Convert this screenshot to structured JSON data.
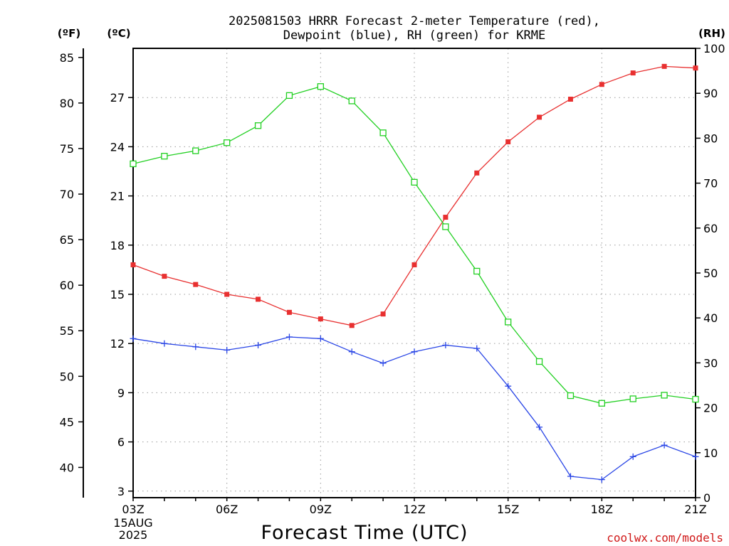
{
  "title_line1": "2025081503 HRRR Forecast 2-meter Temperature (red),",
  "title_line2": "Dewpoint (blue), RH (green) for KRME",
  "credit": "coolwx.com/models",
  "colors": {
    "temperature": "#e83030",
    "dewpoint": "#2a46e6",
    "rh": "#22d022"
  },
  "chart_data": {
    "type": "line",
    "xlabel": "Forecast Time (UTC)",
    "x": [
      "03Z",
      "04Z",
      "05Z",
      "06Z",
      "07Z",
      "08Z",
      "09Z",
      "10Z",
      "11Z",
      "12Z",
      "13Z",
      "14Z",
      "15Z",
      "16Z",
      "17Z",
      "18Z",
      "19Z",
      "20Z",
      "21Z"
    ],
    "x_ticks": [
      {
        "label": "03Z",
        "sub": [
          "15AUG",
          "2025"
        ]
      },
      {
        "label": "06Z"
      },
      {
        "label": "09Z"
      },
      {
        "label": "12Z"
      },
      {
        "label": "15Z"
      },
      {
        "label": "18Z"
      },
      {
        "label": "21Z"
      }
    ],
    "left_axis_c": {
      "unit": "(ºC)",
      "ylim": [
        2.6,
        30.0
      ],
      "ticks": [
        3,
        6,
        9,
        12,
        15,
        18,
        21,
        24,
        27
      ]
    },
    "left_axis_f": {
      "unit": "(ºF)",
      "ticks": [
        40,
        45,
        50,
        55,
        60,
        65,
        70,
        75,
        80,
        85
      ]
    },
    "right_axis_rh": {
      "unit": "(RH)",
      "ylim": [
        0,
        100
      ],
      "ticks": [
        0,
        10,
        20,
        30,
        40,
        50,
        60,
        70,
        80,
        90,
        100
      ]
    },
    "grid": true,
    "series": [
      {
        "name": "Temperature",
        "axis": "c",
        "marker": "filled-square",
        "values": [
          16.8,
          16.1,
          15.6,
          15.0,
          14.7,
          13.9,
          13.5,
          13.1,
          13.8,
          16.8,
          19.7,
          22.4,
          24.3,
          25.8,
          26.9,
          27.8,
          28.5,
          28.9,
          28.8
        ]
      },
      {
        "name": "Dewpoint",
        "axis": "c",
        "marker": "plus",
        "values": [
          12.3,
          12.0,
          11.8,
          11.6,
          11.9,
          12.4,
          12.3,
          11.5,
          10.8,
          11.5,
          11.9,
          11.7,
          9.4,
          6.9,
          3.9,
          3.7,
          5.1,
          5.8,
          5.1
        ]
      },
      {
        "name": "RH",
        "axis": "rh",
        "marker": "open-square",
        "values": [
          74.3,
          76.0,
          77.2,
          79.0,
          82.8,
          89.5,
          91.5,
          88.3,
          81.2,
          70.2,
          60.3,
          50.4,
          39.1,
          30.3,
          22.7,
          21.0,
          22.0,
          22.8,
          21.9
        ]
      }
    ]
  }
}
